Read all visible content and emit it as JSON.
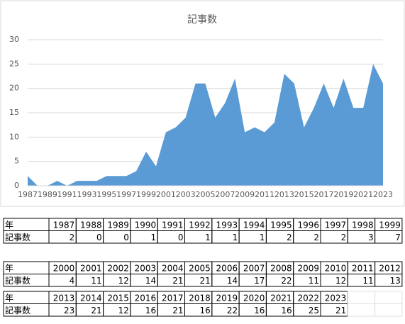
{
  "chart_data": {
    "type": "area",
    "title": "記事数",
    "x": [
      1987,
      1988,
      1989,
      1990,
      1991,
      1992,
      1993,
      1994,
      1995,
      1996,
      1997,
      1998,
      1999,
      2000,
      2001,
      2002,
      2003,
      2004,
      2005,
      2006,
      2007,
      2008,
      2009,
      2010,
      2011,
      2012,
      2013,
      2014,
      2015,
      2016,
      2017,
      2018,
      2019,
      2020,
      2021,
      2022,
      2023
    ],
    "values": [
      2,
      0,
      0,
      1,
      0,
      1,
      1,
      1,
      2,
      2,
      2,
      3,
      7,
      4,
      11,
      12,
      14,
      21,
      21,
      14,
      17,
      22,
      11,
      12,
      11,
      13,
      23,
      21,
      12,
      16,
      21,
      16,
      22,
      16,
      16,
      25,
      21
    ],
    "color": "#5b9bd5",
    "xlim": [
      1987,
      2023
    ],
    "xticks": [
      1987,
      1989,
      1991,
      1993,
      1995,
      1997,
      1999,
      2001,
      2003,
      2005,
      2007,
      2009,
      2011,
      2013,
      2015,
      2017,
      2019,
      2021,
      2023
    ],
    "ylim": [
      0,
      30
    ],
    "yticks": [
      0,
      5,
      10,
      15,
      20,
      25,
      30
    ],
    "grid": true
  },
  "table": {
    "row_headers": [
      "年",
      "記事数"
    ]
  }
}
